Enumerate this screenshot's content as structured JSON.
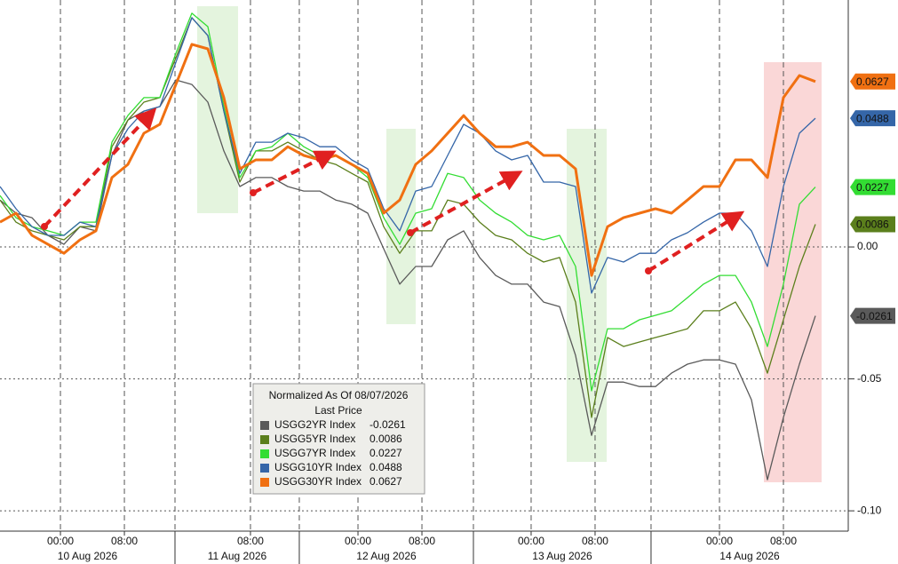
{
  "chart_data": {
    "type": "line",
    "legend": {
      "title": "Normalized As Of 08/07/2026",
      "subtitle": "Last Price"
    },
    "x": [
      0,
      2,
      4,
      6,
      8,
      10,
      12,
      14,
      16,
      18,
      20,
      22,
      24,
      26,
      28,
      30,
      32,
      34,
      36,
      38,
      40,
      42,
      44,
      46,
      48,
      50,
      52,
      54,
      56,
      58,
      60,
      62,
      64,
      66,
      68,
      70,
      72,
      74,
      76,
      78,
      80,
      82,
      84,
      86,
      88,
      90,
      92,
      94,
      96,
      98,
      100,
      102
    ],
    "xlim": [
      0,
      106.11
    ],
    "xticks": [
      {
        "value": 7.56,
        "label": "00:00"
      },
      {
        "value": 15.56,
        "label": "08:00"
      },
      {
        "value": 31.33,
        "label": "08:00"
      },
      {
        "value": 44.78,
        "label": "00:00"
      },
      {
        "value": 52.78,
        "label": "08:00"
      },
      {
        "value": 66.44,
        "label": "00:00"
      },
      {
        "value": 74.44,
        "label": "08:00"
      },
      {
        "value": 90,
        "label": "00:00"
      },
      {
        "value": 98,
        "label": "08:00"
      }
    ],
    "days": [
      {
        "label": "10 Aug 2026",
        "from": 0,
        "to": 21.89
      },
      {
        "label": "11 Aug 2026",
        "from": 21.89,
        "to": 37.44
      },
      {
        "label": "12 Aug 2026",
        "from": 37.44,
        "to": 59.22
      },
      {
        "label": "13 Aug 2026",
        "from": 59.22,
        "to": 81.44
      },
      {
        "label": "14 Aug 2026",
        "from": 81.44,
        "to": 106.11
      }
    ],
    "ylim": [
      -0.1077,
      0.0936
    ],
    "yticks": [
      {
        "value": 0,
        "label": "0.00"
      },
      {
        "value": -0.05,
        "label": "-0.05"
      },
      {
        "value": -0.1,
        "label": "-0.10"
      }
    ],
    "grid": true,
    "series": [
      {
        "name": "USGG2YR Index",
        "color": "#5a5a5a",
        "values": [
          0.0178,
          0.0128,
          0.0111,
          0.0044,
          0.001,
          0.0077,
          0.0061,
          0.0347,
          0.0481,
          0.0515,
          0.0532,
          0.0633,
          0.0616,
          0.0549,
          0.0364,
          0.0229,
          0.0263,
          0.0263,
          0.0229,
          0.0212,
          0.0212,
          0.0178,
          0.0162,
          0.0128,
          -0.0007,
          -0.0141,
          -0.0074,
          -0.0074,
          0.0027,
          0.0061,
          -0.004,
          -0.0108,
          -0.0141,
          -0.0141,
          -0.0209,
          -0.0226,
          -0.0411,
          -0.0714,
          -0.0512,
          -0.0512,
          -0.0529,
          -0.0529,
          -0.0478,
          -0.0444,
          -0.0428,
          -0.0428,
          -0.0444,
          -0.0579,
          -0.0882,
          -0.0646,
          -0.0444,
          -0.0261
        ]
      },
      {
        "name": "USGG5YR Index",
        "color": "#5b7f1c",
        "values": [
          0.0178,
          0.0094,
          0.0061,
          0.0044,
          0.0027,
          0.0077,
          0.0077,
          0.038,
          0.0481,
          0.0549,
          0.0566,
          0.0717,
          0.0869,
          0.0801,
          0.0515,
          0.0246,
          0.0364,
          0.0364,
          0.0397,
          0.0364,
          0.033,
          0.0313,
          0.0279,
          0.0246,
          0.0077,
          -0.0024,
          0.0061,
          0.0061,
          0.0178,
          0.0162,
          0.0094,
          0.0044,
          0.0027,
          -0.0024,
          -0.0057,
          -0.004,
          -0.0209,
          -0.0646,
          -0.0343,
          -0.0377,
          -0.036,
          -0.0343,
          -0.0327,
          -0.031,
          -0.0242,
          -0.0242,
          -0.0209,
          -0.031,
          -0.0478,
          -0.0276,
          -0.0074,
          0.0086
        ]
      },
      {
        "name": "USGG7YR Index",
        "color": "#33dd33",
        "values": [
          0.0195,
          0.0111,
          0.0077,
          0.0061,
          0.0044,
          0.0094,
          0.0094,
          0.0397,
          0.0498,
          0.0566,
          0.0566,
          0.0734,
          0.0886,
          0.0835,
          0.0532,
          0.0263,
          0.0364,
          0.038,
          0.0431,
          0.038,
          0.0347,
          0.0347,
          0.0313,
          0.0263,
          0.0111,
          0.001,
          0.0128,
          0.0145,
          0.0279,
          0.0263,
          0.0178,
          0.0128,
          0.0094,
          0.0044,
          0.0027,
          0.0044,
          -0.0074,
          -0.0545,
          -0.031,
          -0.031,
          -0.0276,
          -0.0259,
          -0.0242,
          -0.0192,
          -0.0141,
          -0.0108,
          -0.0108,
          -0.0209,
          -0.0377,
          -0.0141,
          0.0162,
          0.0227
        ]
      },
      {
        "name": "USGG10YR Index",
        "color": "#3566a8",
        "values": [
          0.0229,
          0.0145,
          0.0077,
          0.0044,
          0.0044,
          0.0094,
          0.0077,
          0.0347,
          0.0448,
          0.0515,
          0.0532,
          0.07,
          0.0869,
          0.0801,
          0.0515,
          0.0279,
          0.0397,
          0.0397,
          0.0431,
          0.0414,
          0.038,
          0.038,
          0.033,
          0.0296,
          0.0145,
          0.0061,
          0.0212,
          0.0229,
          0.0347,
          0.0465,
          0.0431,
          0.0364,
          0.033,
          0.0347,
          0.0246,
          0.0246,
          0.0229,
          -0.0175,
          -0.004,
          -0.0057,
          -0.0024,
          -0.0024,
          0.0027,
          0.0054,
          0.0094,
          0.0128,
          0.0128,
          0.0061,
          -0.0074,
          0.0229,
          0.0431,
          0.0488
        ]
      },
      {
        "name": "USGG30YR Index",
        "color": "#f07012",
        "values": [
          0.0094,
          0.0128,
          0.0044,
          0.001,
          -0.0024,
          0.0027,
          0.0061,
          0.0263,
          0.0313,
          0.0431,
          0.0465,
          0.0616,
          0.0768,
          0.0751,
          0.0566,
          0.0296,
          0.033,
          0.033,
          0.038,
          0.0347,
          0.033,
          0.0347,
          0.0313,
          0.0279,
          0.0128,
          0.0178,
          0.0313,
          0.0364,
          0.0431,
          0.0498,
          0.0431,
          0.038,
          0.038,
          0.0397,
          0.0347,
          0.0347,
          0.0296,
          -0.0108,
          0.0077,
          0.0111,
          0.0128,
          0.0145,
          0.0128,
          0.0178,
          0.0229,
          0.0229,
          0.033,
          0.033,
          0.0263,
          0.0566,
          0.065,
          0.0627
        ]
      }
    ]
  }
}
